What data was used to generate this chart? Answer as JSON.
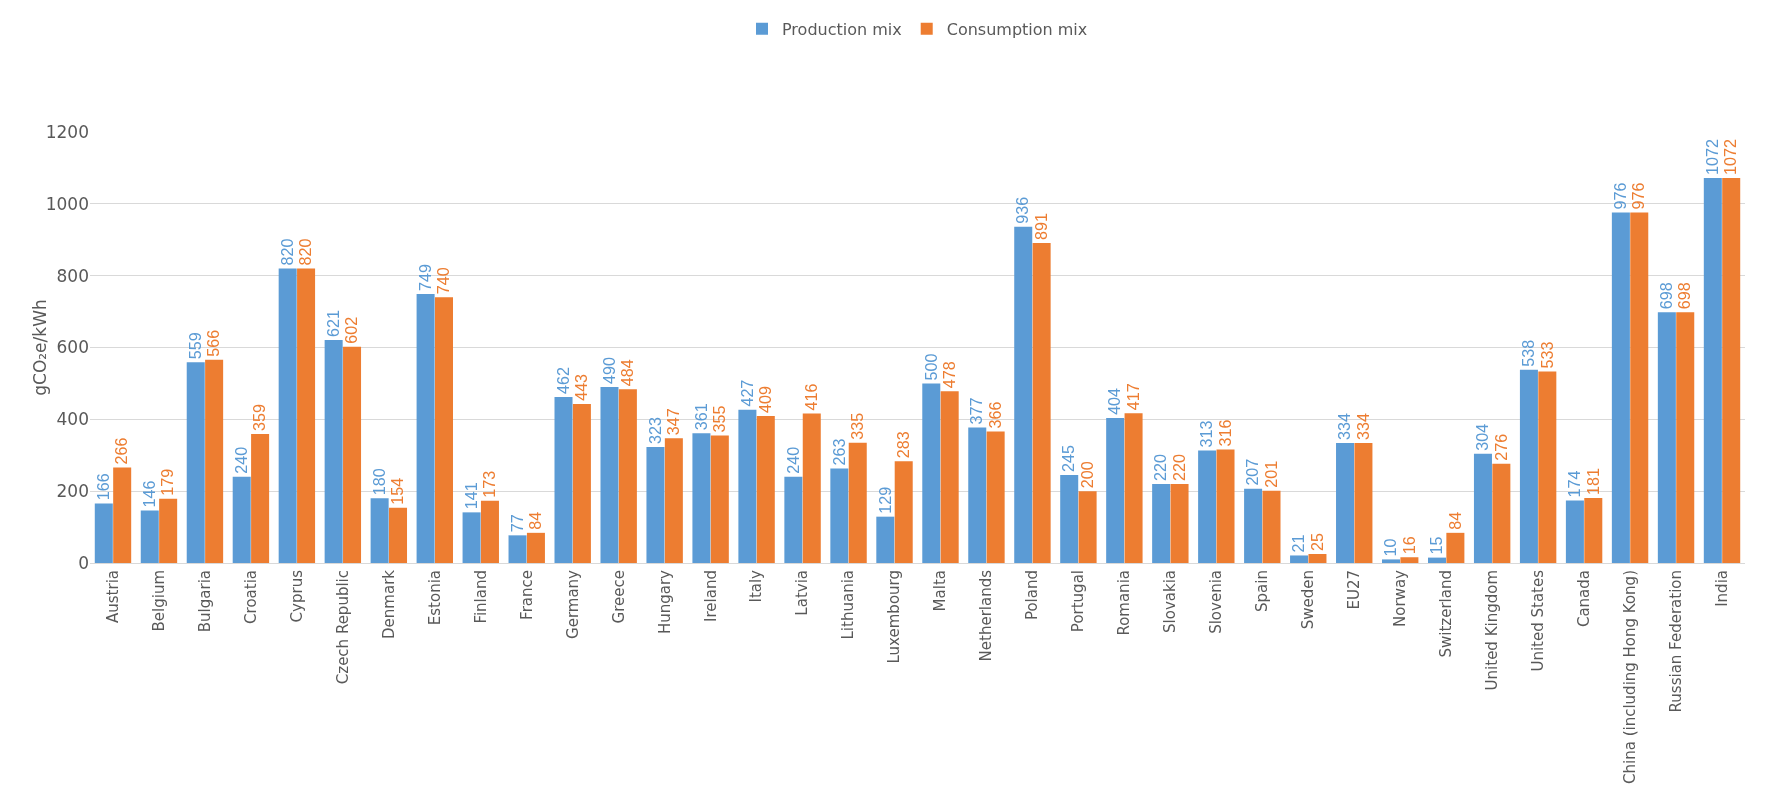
{
  "chart_data": {
    "type": "bar",
    "ylabel": "gCO₂e/kWh",
    "categories": [
      "Austria",
      "Belgium",
      "Bulgaria",
      "Croatia",
      "Cyprus",
      "Czech Republic",
      "Denmark",
      "Estonia",
      "Finland",
      "France",
      "Germany",
      "Greece",
      "Hungary",
      "Ireland",
      "Italy",
      "Latvia",
      "Lithuania",
      "Luxembourg",
      "Malta",
      "Netherlands",
      "Poland",
      "Portugal",
      "Romania",
      "Slovakia",
      "Slovenia",
      "Spain",
      "Sweden",
      "EU27",
      "Norway",
      "Switzerland",
      "United Kingdom",
      "United States",
      "Canada",
      "China (including Hong Kong)",
      "Russian Federation",
      "India"
    ],
    "series": [
      {
        "name": "Production mix",
        "color": "#5b9bd5",
        "values": [
          166,
          146,
          559,
          240,
          820,
          621,
          180,
          749,
          141,
          77,
          462,
          490,
          323,
          361,
          427,
          240,
          263,
          129,
          500,
          377,
          936,
          245,
          404,
          220,
          313,
          207,
          21,
          334,
          10,
          15,
          304,
          538,
          174,
          976,
          698,
          1072
        ]
      },
      {
        "name": "Consumption mix",
        "color": "#ed7d31",
        "values": [
          266,
          179,
          566,
          359,
          820,
          602,
          154,
          740,
          173,
          84,
          443,
          484,
          347,
          355,
          409,
          416,
          335,
          283,
          478,
          366,
          891,
          200,
          417,
          220,
          316,
          201,
          25,
          334,
          16,
          84,
          276,
          533,
          181,
          976,
          698,
          1072
        ]
      }
    ],
    "ylim": [
      0,
      1200
    ],
    "yticks": [
      0,
      200,
      400,
      600,
      800,
      1000,
      1200
    ],
    "grid": "y",
    "legend": "top",
    "data_labels": true
  }
}
